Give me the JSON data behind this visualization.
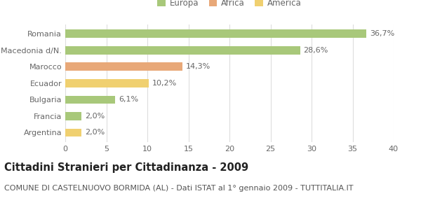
{
  "categories": [
    "Romania",
    "Macedonia d/N.",
    "Marocco",
    "Ecuador",
    "Bulgaria",
    "Francia",
    "Argentina"
  ],
  "values": [
    36.7,
    28.6,
    14.3,
    10.2,
    6.1,
    2.0,
    2.0
  ],
  "labels": [
    "36,7%",
    "28,6%",
    "14,3%",
    "10,2%",
    "6,1%",
    "2,0%",
    "2,0%"
  ],
  "colors": [
    "#a8c87a",
    "#a8c87a",
    "#e8a878",
    "#f0d070",
    "#a8c87a",
    "#a8c87a",
    "#f0d070"
  ],
  "legend_items": [
    {
      "label": "Europa",
      "color": "#a8c87a"
    },
    {
      "label": "Africa",
      "color": "#e8a878"
    },
    {
      "label": "America",
      "color": "#f0d070"
    }
  ],
  "xlim": [
    0,
    40
  ],
  "xticks": [
    0,
    5,
    10,
    15,
    20,
    25,
    30,
    35,
    40
  ],
  "title": "Cittadini Stranieri per Cittadinanza - 2009",
  "subtitle": "COMUNE DI CASTELNUOVO BORMIDA (AL) - Dati ISTAT al 1° gennaio 2009 - TUTTITALIA.IT",
  "bg_color": "#ffffff",
  "grid_color": "#dddddd",
  "bar_height": 0.5,
  "label_fontsize": 8,
  "tick_fontsize": 8,
  "title_fontsize": 10.5,
  "subtitle_fontsize": 8
}
